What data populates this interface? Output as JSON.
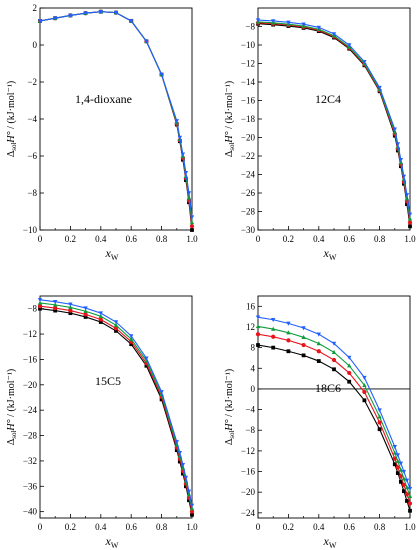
{
  "chart_data": [
    {
      "type": "line",
      "panel_label": "1,4-dioxane",
      "xlabel": "x_W",
      "ylabel": "Δ_sol H° / (kJ·mol⁻¹)",
      "xlim": [
        0,
        1.0
      ],
      "ylim": [
        -10,
        2
      ],
      "xticks": [
        0,
        0.2,
        0.4,
        0.6,
        0.8,
        1.0
      ],
      "yticks": [
        2,
        0,
        -2,
        -4,
        -6,
        -8,
        -10
      ],
      "x": [
        0,
        0.1,
        0.2,
        0.3,
        0.4,
        0.5,
        0.6,
        0.7,
        0.8,
        0.9,
        0.92,
        0.94,
        0.96,
        0.98,
        1.0
      ],
      "series": [
        {
          "color": "#000000",
          "marker": "square",
          "values": [
            1.3,
            1.45,
            1.6,
            1.72,
            1.8,
            1.75,
            1.3,
            0.2,
            -1.6,
            -4.3,
            -5.2,
            -6.2,
            -7.3,
            -8.5,
            -10.0
          ]
        },
        {
          "color": "#e8141c",
          "marker": "circle",
          "values": [
            1.3,
            1.45,
            1.6,
            1.72,
            1.8,
            1.75,
            1.3,
            0.2,
            -1.6,
            -4.25,
            -5.15,
            -6.1,
            -7.2,
            -8.4,
            -9.8
          ]
        },
        {
          "color": "#0f9d3a",
          "marker": "triangle-up",
          "values": [
            1.3,
            1.45,
            1.6,
            1.72,
            1.8,
            1.75,
            1.3,
            0.2,
            -1.6,
            -4.2,
            -5.1,
            -6.0,
            -7.1,
            -8.25,
            -9.6
          ]
        },
        {
          "color": "#2060ff",
          "marker": "triangle-down",
          "values": [
            1.3,
            1.45,
            1.6,
            1.72,
            1.8,
            1.75,
            1.3,
            0.2,
            -1.6,
            -4.1,
            -5.0,
            -5.9,
            -6.9,
            -8.0,
            -9.3
          ]
        }
      ],
      "grid": false,
      "zero_line": false
    },
    {
      "type": "line",
      "panel_label": "12C4",
      "xlabel": "x_W",
      "ylabel": "Δ_sol H° / (kJ·mol⁻¹)",
      "xlim": [
        0,
        1.0
      ],
      "ylim": [
        -30,
        -6
      ],
      "xticks": [
        0,
        0.2,
        0.4,
        0.6,
        0.8,
        1.0
      ],
      "yticks": [
        -8,
        -10,
        -12,
        -14,
        -16,
        -18,
        -20,
        -22,
        -24,
        -26,
        -28,
        -30
      ],
      "x": [
        0,
        0.1,
        0.2,
        0.3,
        0.4,
        0.5,
        0.6,
        0.7,
        0.8,
        0.9,
        0.92,
        0.94,
        0.96,
        0.98,
        1.0
      ],
      "series": [
        {
          "color": "#000000",
          "marker": "square",
          "values": [
            -7.7,
            -7.8,
            -7.95,
            -8.15,
            -8.5,
            -9.2,
            -10.4,
            -12.2,
            -15.0,
            -19.8,
            -21.4,
            -23.1,
            -25.0,
            -27.2,
            -29.6
          ]
        },
        {
          "color": "#e8141c",
          "marker": "circle",
          "values": [
            -7.6,
            -7.7,
            -7.85,
            -8.05,
            -8.4,
            -9.1,
            -10.3,
            -12.1,
            -14.9,
            -19.6,
            -21.2,
            -22.9,
            -24.8,
            -26.9,
            -29.2
          ]
        },
        {
          "color": "#0f9d3a",
          "marker": "triangle-up",
          "values": [
            -7.5,
            -7.6,
            -7.75,
            -7.95,
            -8.3,
            -9.0,
            -10.2,
            -12.0,
            -14.8,
            -19.4,
            -21.0,
            -22.7,
            -24.5,
            -26.6,
            -28.8
          ]
        },
        {
          "color": "#2060ff",
          "marker": "triangle-down",
          "values": [
            -7.3,
            -7.4,
            -7.55,
            -7.75,
            -8.1,
            -8.8,
            -10.0,
            -11.8,
            -14.6,
            -19.1,
            -20.7,
            -22.4,
            -24.2,
            -26.2,
            -28.3
          ]
        }
      ],
      "grid": false,
      "zero_line": false
    },
    {
      "type": "line",
      "panel_label": "15C5",
      "xlabel": "x_W",
      "ylabel": "Δ_sol H° / (kJ·mol⁻¹)",
      "xlim": [
        0,
        1.0
      ],
      "ylim": [
        -41,
        -6
      ],
      "xticks": [
        0,
        0.2,
        0.4,
        0.6,
        0.8,
        1.0
      ],
      "yticks": [
        -8,
        -12,
        -16,
        -20,
        -24,
        -28,
        -32,
        -36,
        -40
      ],
      "x": [
        0,
        0.1,
        0.2,
        0.3,
        0.4,
        0.5,
        0.6,
        0.7,
        0.8,
        0.9,
        0.92,
        0.94,
        0.96,
        0.98,
        1.0
      ],
      "series": [
        {
          "color": "#000000",
          "marker": "square",
          "values": [
            -8.0,
            -8.3,
            -8.7,
            -9.3,
            -10.1,
            -11.5,
            -13.6,
            -17.0,
            -22.3,
            -30.3,
            -32.1,
            -34.0,
            -36.0,
            -38.2,
            -40.5
          ]
        },
        {
          "color": "#e8141c",
          "marker": "circle",
          "values": [
            -7.6,
            -7.9,
            -8.3,
            -8.9,
            -9.7,
            -11.1,
            -13.2,
            -16.6,
            -21.9,
            -29.9,
            -31.7,
            -33.6,
            -35.6,
            -37.8,
            -40.0
          ]
        },
        {
          "color": "#0f9d3a",
          "marker": "triangle-up",
          "values": [
            -7.1,
            -7.4,
            -7.8,
            -8.4,
            -9.2,
            -10.6,
            -12.8,
            -16.2,
            -21.5,
            -29.5,
            -31.2,
            -33.1,
            -35.1,
            -37.3,
            -39.5
          ]
        },
        {
          "color": "#2060ff",
          "marker": "triangle-down",
          "values": [
            -6.6,
            -6.9,
            -7.3,
            -7.9,
            -8.7,
            -10.1,
            -12.3,
            -15.8,
            -21.1,
            -29.0,
            -30.7,
            -32.6,
            -34.6,
            -36.8,
            -39.0
          ]
        }
      ],
      "grid": false,
      "zero_line": false
    },
    {
      "type": "line",
      "panel_label": "18C6",
      "xlabel": "x_W",
      "ylabel": "Δ_sol H° / (kJ·mol⁻¹)",
      "xlim": [
        0,
        1.0
      ],
      "ylim": [
        -25,
        18
      ],
      "xticks": [
        0,
        0.2,
        0.4,
        0.6,
        0.8,
        1.0
      ],
      "yticks": [
        16,
        12,
        8,
        4,
        0,
        -4,
        -8,
        -12,
        -16,
        -20,
        -24
      ],
      "x": [
        0,
        0.1,
        0.2,
        0.3,
        0.4,
        0.5,
        0.6,
        0.7,
        0.8,
        0.9,
        0.92,
        0.94,
        0.96,
        0.98,
        1.0
      ],
      "series": [
        {
          "color": "#000000",
          "marker": "square",
          "values": [
            8.5,
            8.0,
            7.3,
            6.5,
            5.4,
            3.8,
            1.4,
            -2.2,
            -7.8,
            -14.6,
            -16.3,
            -18.0,
            -19.8,
            -21.7,
            -23.6
          ]
        },
        {
          "color": "#e8141c",
          "marker": "circle",
          "values": [
            10.6,
            10.1,
            9.4,
            8.5,
            7.3,
            5.6,
            3.1,
            -0.6,
            -6.5,
            -13.5,
            -15.2,
            -16.9,
            -18.6,
            -20.4,
            -22.2
          ]
        },
        {
          "color": "#0f9d3a",
          "marker": "triangle-up",
          "values": [
            12.1,
            11.6,
            10.9,
            10.0,
            8.8,
            7.1,
            4.5,
            0.7,
            -5.4,
            -12.4,
            -14.0,
            -15.7,
            -17.4,
            -19.1,
            -20.8
          ]
        },
        {
          "color": "#2060ff",
          "marker": "triangle-down",
          "values": [
            13.9,
            13.4,
            12.7,
            11.8,
            10.6,
            8.8,
            6.1,
            2.2,
            -4.1,
            -11.2,
            -12.8,
            -14.4,
            -16.0,
            -17.7,
            -19.3
          ]
        }
      ],
      "grid": false,
      "zero_line": true
    }
  ]
}
